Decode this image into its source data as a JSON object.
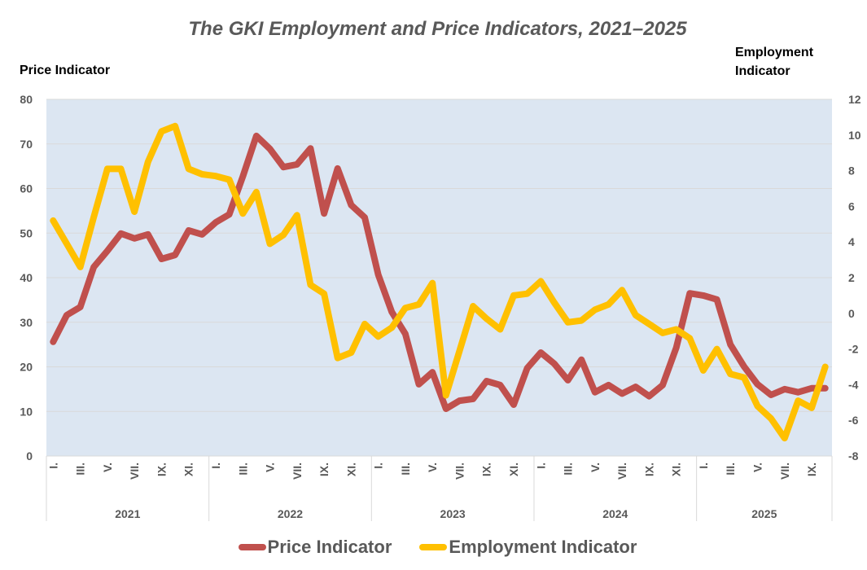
{
  "chart_data": {
    "type": "line",
    "title": "The GKI Employment and Price Indicators, 2021–2025",
    "ylabel_left": "Price Indicator",
    "ylabel_right": "Employment Indicator",
    "ylim_left": [
      0,
      80
    ],
    "ylim_right": [
      -8,
      12
    ],
    "yticks_left": [
      "80",
      "70",
      "60",
      "50",
      "40",
      "30",
      "20",
      "10",
      "0"
    ],
    "yticks_right": [
      "12",
      "10",
      "8",
      "6",
      "4",
      "2",
      "0",
      "-2",
      "-4",
      "-6",
      "-8"
    ],
    "grid": true,
    "legend_position": "bottom",
    "years": [
      "2021",
      "2022",
      "2023",
      "2024",
      "2025"
    ],
    "months_per_year": [
      12,
      12,
      12,
      12,
      10
    ],
    "month_tick_labels": [
      "I.",
      "III.",
      "V.",
      "VII.",
      "IX.",
      "XI."
    ],
    "series": [
      {
        "name": "Price Indicator",
        "axis": "left",
        "color": "#C0504D",
        "values": [
          25.6,
          31.6,
          33.4,
          42.4,
          46.0,
          49.9,
          48.8,
          49.7,
          44.2,
          45.1,
          50.6,
          49.7,
          52.4,
          54.2,
          62.7,
          71.8,
          68.9,
          64.8,
          65.4,
          69.0,
          54.4,
          64.5,
          56.3,
          53.5,
          40.7,
          32.3,
          27.4,
          16.1,
          18.8,
          10.6,
          12.4,
          12.8,
          16.8,
          15.9,
          11.5,
          19.7,
          23.2,
          20.7,
          17.0,
          21.6,
          14.3,
          15.9,
          14.0,
          15.5,
          13.4,
          15.9,
          24.3,
          36.5,
          36.0,
          35.1,
          25.0,
          20.1,
          16.1,
          13.7,
          15.0,
          14.3,
          15.2,
          15.2
        ]
      },
      {
        "name": "Employment Indicator",
        "axis": "right",
        "color": "#FFC000",
        "values": [
          5.2,
          3.9,
          2.6,
          5.4,
          8.1,
          8.1,
          5.7,
          8.5,
          10.2,
          10.5,
          8.1,
          7.8,
          7.7,
          7.5,
          5.6,
          6.8,
          3.9,
          4.4,
          5.5,
          1.6,
          1.1,
          -2.5,
          -2.2,
          -0.6,
          -1.3,
          -0.8,
          0.3,
          0.5,
          1.7,
          -4.6,
          -2.1,
          0.4,
          -0.3,
          -0.9,
          1.0,
          1.1,
          1.8,
          0.6,
          -0.5,
          -0.4,
          0.2,
          0.5,
          1.3,
          -0.1,
          -0.6,
          -1.1,
          -0.9,
          -1.4,
          -3.2,
          -2.0,
          -3.4,
          -3.6,
          -5.2,
          -5.9,
          -7.0,
          -4.9,
          -5.3,
          -3.0
        ]
      }
    ]
  }
}
